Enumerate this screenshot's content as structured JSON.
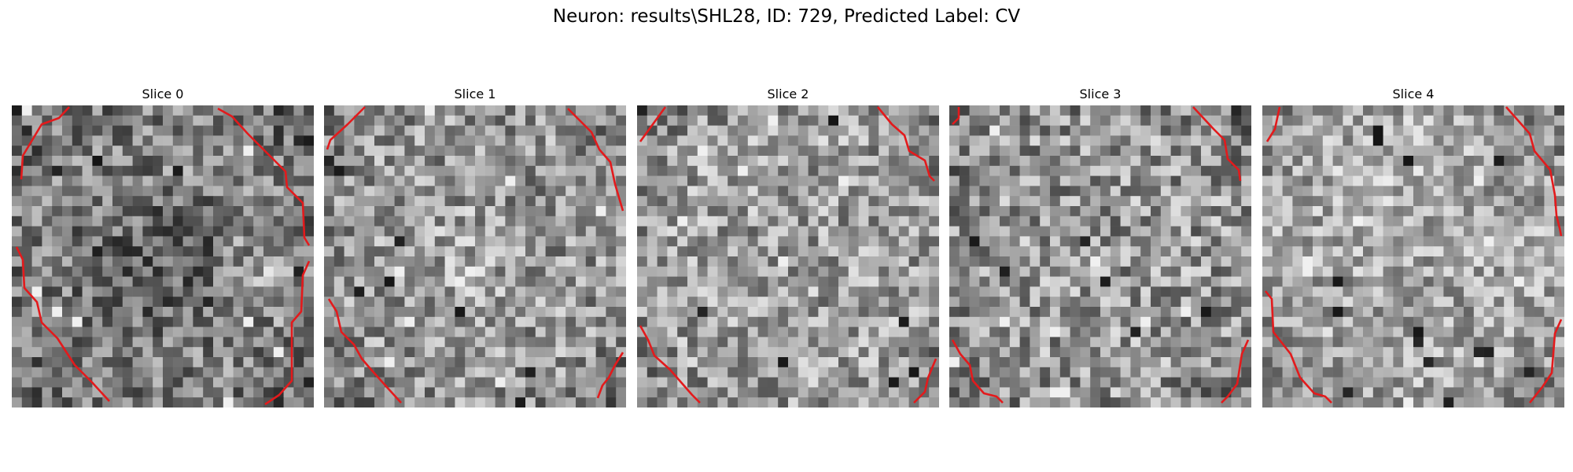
{
  "figure": {
    "title": "Neuron: results\\SHL28, ID: 729, Predicted Label: CV"
  },
  "panels": [
    {
      "title": "Slice 0"
    },
    {
      "title": "Slice 1"
    },
    {
      "title": "Slice 2"
    },
    {
      "title": "Slice 3"
    },
    {
      "title": "Slice 4"
    }
  ],
  "colors": {
    "contour": "#e31a1c",
    "background": "#ffffff"
  },
  "image": {
    "grid_size": 30,
    "colormap": "grayscale"
  }
}
